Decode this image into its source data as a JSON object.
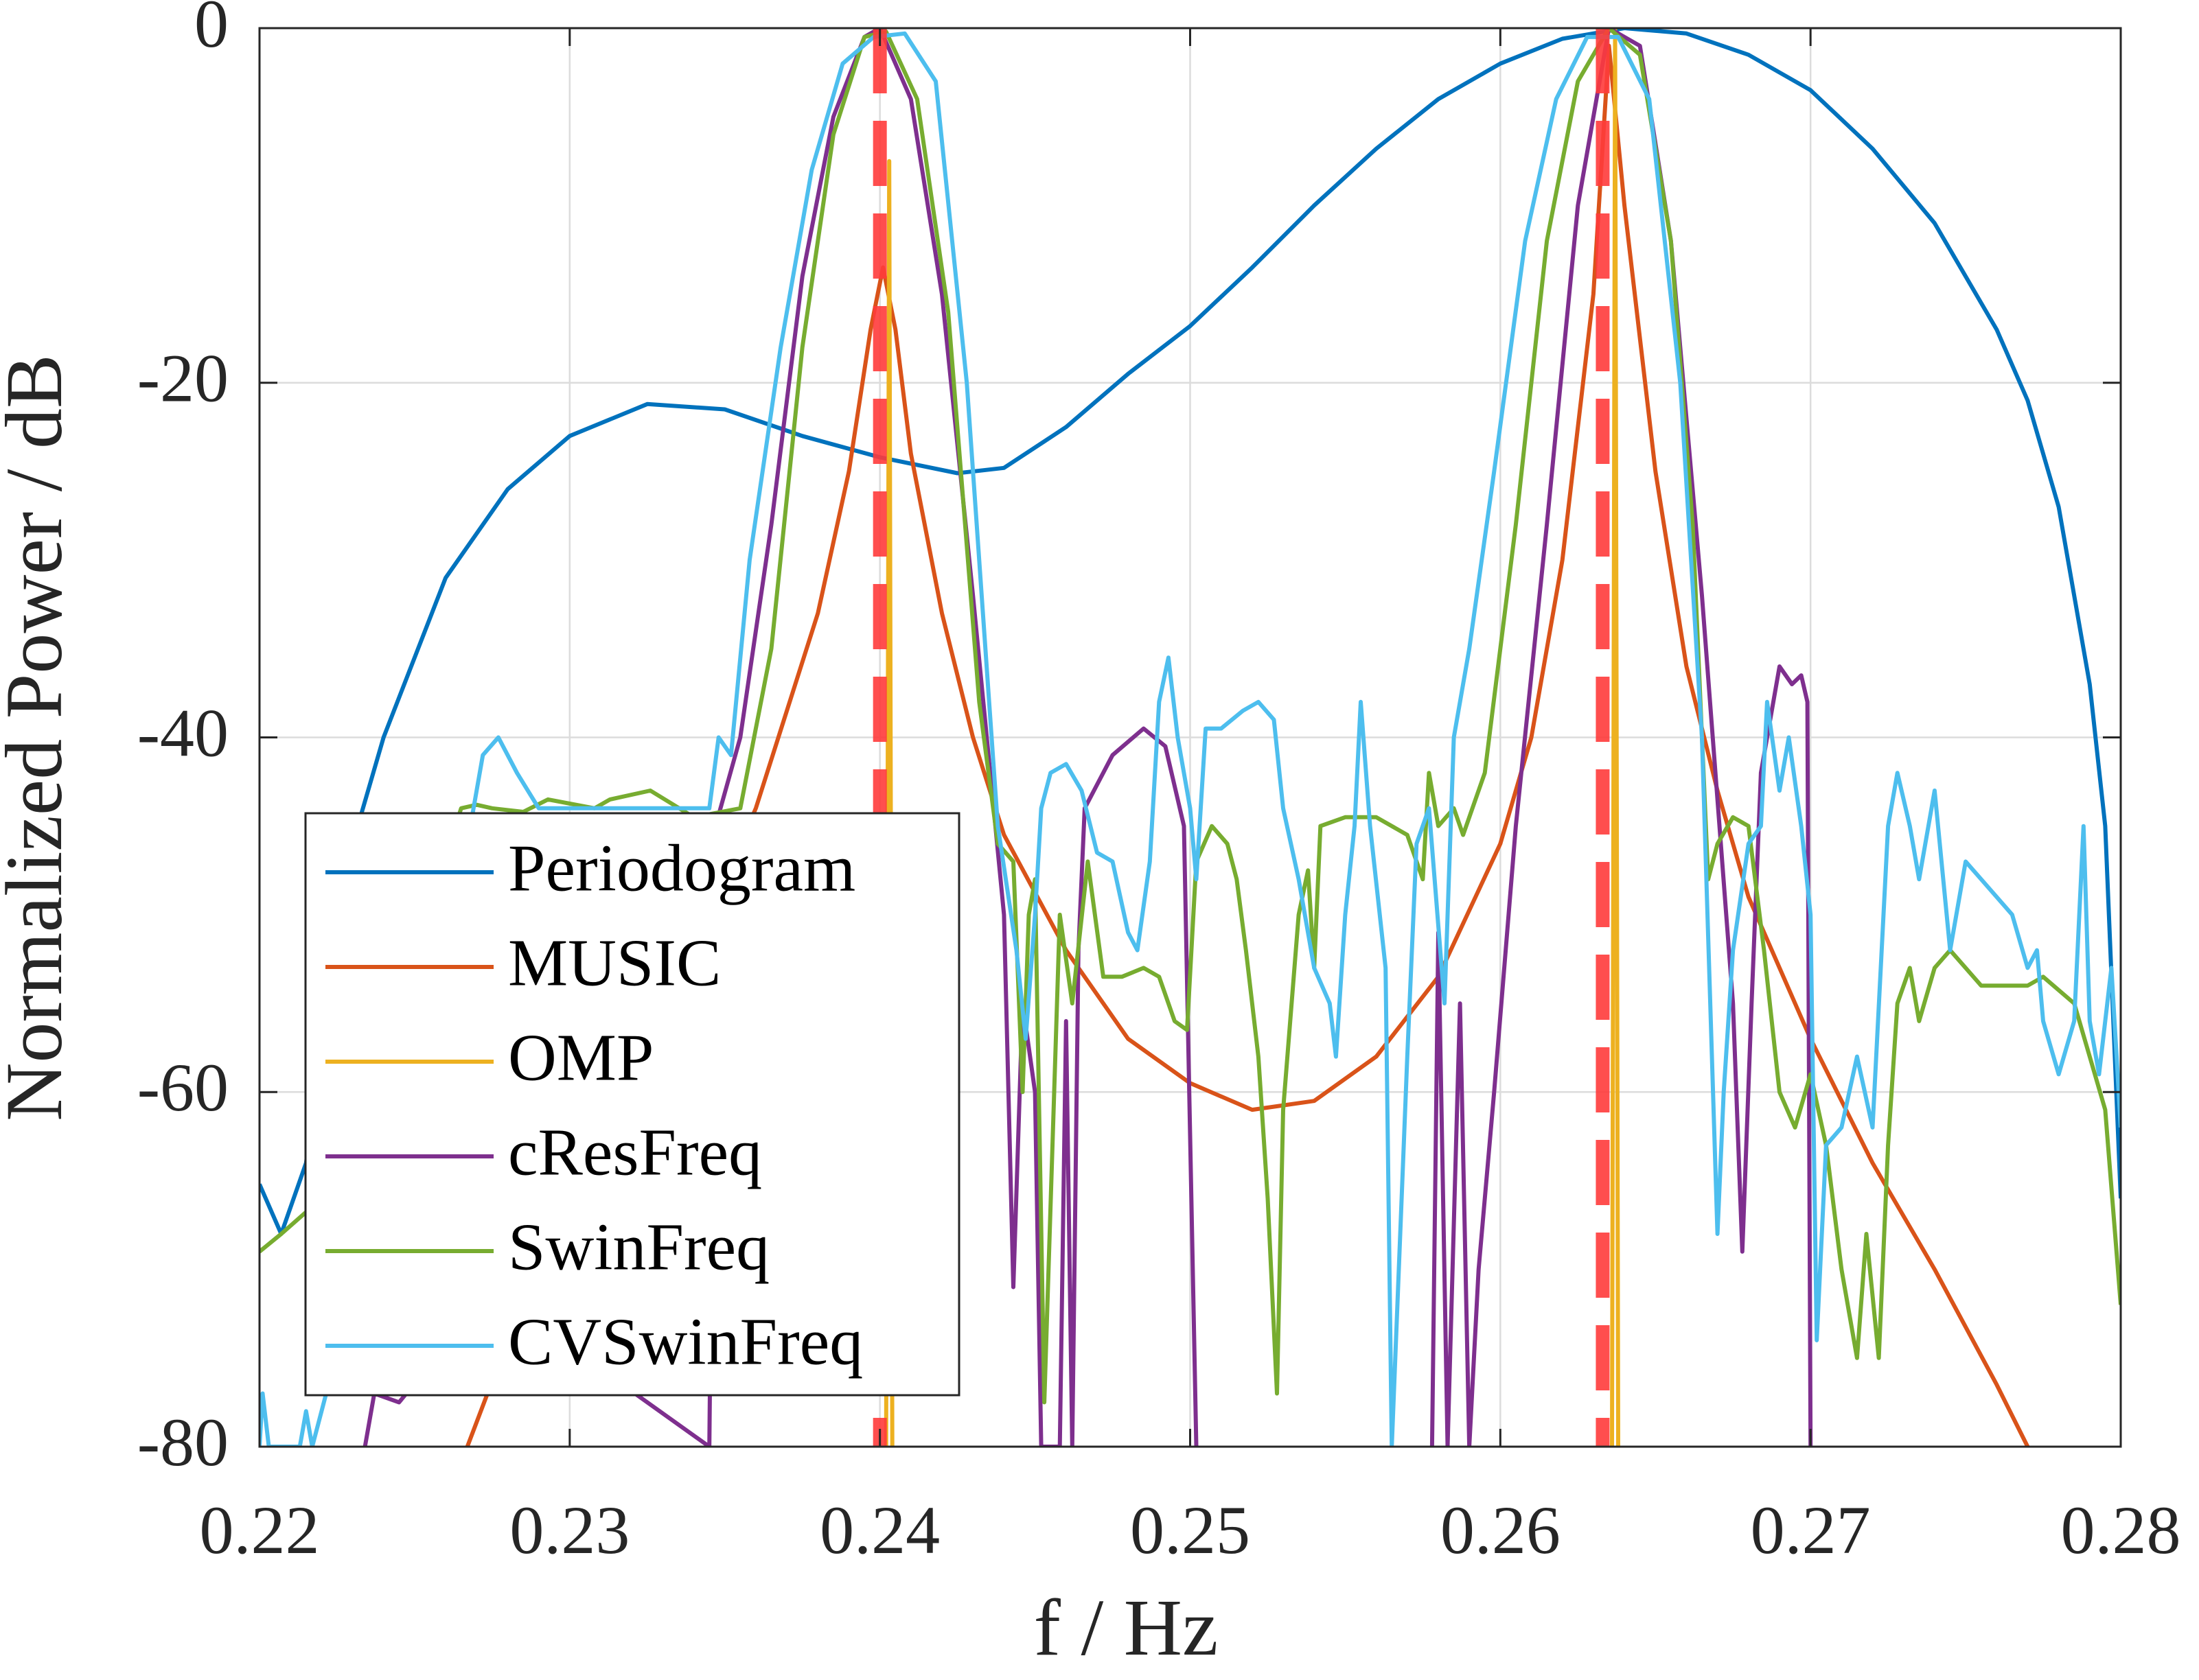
{
  "chart_data": {
    "type": "line",
    "xlabel": "f / Hz",
    "ylabel": "Normalized Power / dB",
    "xlim": [
      0.22,
      0.28
    ],
    "xticks": [
      0.22,
      0.23,
      0.24,
      0.25,
      0.26,
      0.27,
      0.28
    ],
    "ylim": [
      -80,
      0
    ],
    "yticks": [
      -80,
      -60,
      -40,
      -20,
      0
    ],
    "grid": true,
    "legend": "lower left",
    "true_frequencies": [
      0.24,
      0.2633
    ],
    "true_frequency_color": "#ff3b3b",
    "series": [
      {
        "name": "Periodogram",
        "color": "#0072BD",
        "x": [
          0.22,
          0.2207,
          0.2215,
          0.222,
          0.223,
          0.224,
          0.226,
          0.228,
          0.23,
          0.2325,
          0.235,
          0.2375,
          0.24,
          0.2425,
          0.244,
          0.246,
          0.248,
          0.25,
          0.252,
          0.254,
          0.256,
          0.258,
          0.26,
          0.262,
          0.264,
          0.266,
          0.268,
          0.27,
          0.272,
          0.274,
          0.276,
          0.277,
          0.278,
          0.279,
          0.2795,
          0.28
        ],
        "values": [
          -65.2,
          -68,
          -64,
          -57,
          -46,
          -40,
          -31,
          -26,
          -23,
          -21.2,
          -21.5,
          -23,
          -24.2,
          -25.1,
          -24.8,
          -22.5,
          -19.5,
          -16.8,
          -13.5,
          -10,
          -6.8,
          -4,
          -2,
          -0.6,
          0,
          -0.3,
          -1.5,
          -3.5,
          -6.8,
          -11,
          -17,
          -21,
          -27,
          -37,
          -45,
          -66
        ]
      },
      {
        "name": "MUSIC",
        "color": "#D95319",
        "x": [
          0.2267,
          0.228,
          0.23,
          0.232,
          0.234,
          0.236,
          0.238,
          0.239,
          0.2397,
          0.2401,
          0.2405,
          0.241,
          0.242,
          0.243,
          0.244,
          0.246,
          0.248,
          0.25,
          0.252,
          0.254,
          0.256,
          0.258,
          0.26,
          0.261,
          0.262,
          0.263,
          0.2635,
          0.264,
          0.265,
          0.266,
          0.267,
          0.268,
          0.27,
          0.272,
          0.274,
          0.276,
          0.277
        ],
        "values": [
          -80,
          -74,
          -66,
          -59,
          -52,
          -44,
          -33,
          -25,
          -17,
          -13.5,
          -17,
          -24,
          -33,
          -40,
          -45.5,
          -52,
          -57,
          -59.5,
          -61,
          -60.5,
          -58,
          -53.5,
          -46,
          -40,
          -30,
          -15,
          -1,
          -10,
          -25,
          -36,
          -43,
          -49,
          -57,
          -64,
          -70,
          -76.5,
          -80
        ]
      },
      {
        "name": "OMP",
        "color": "#EDB120",
        "x": [
          0.2402,
          0.2403,
          0.2404,
          0.252,
          0.2636,
          0.2637,
          0.2638
        ],
        "values": [
          -80,
          -7.5,
          -80,
          null,
          -80,
          0,
          -80
        ]
      },
      {
        "name": "cResFreq",
        "color": "#7E2F8E",
        "x": [
          0.2234,
          0.2237,
          0.2245,
          0.2252,
          0.2305,
          0.2345,
          0.2347,
          0.2355,
          0.2365,
          0.2375,
          0.2385,
          0.2395,
          0.24,
          0.241,
          0.242,
          0.243,
          0.244,
          0.2443,
          0.2446,
          0.245,
          0.2452,
          0.2458,
          0.246,
          0.2462,
          0.2464,
          0.2466,
          0.2475,
          0.2485,
          0.2492,
          0.2498,
          0.2502,
          0.254,
          0.2578,
          0.258,
          0.2583,
          0.2587,
          0.259,
          0.2593,
          0.2598,
          0.2605,
          0.2615,
          0.2625,
          0.2635,
          0.2645,
          0.2655,
          0.2665,
          0.2675,
          0.2678,
          0.2681,
          0.2684,
          0.269,
          0.2694,
          0.2697,
          0.2699,
          0.27
        ],
        "values": [
          -80,
          -77,
          -77.5,
          -76,
          -75,
          -80,
          -45,
          -40,
          -28,
          -14,
          -5,
          -0.5,
          0,
          -4,
          -15,
          -32,
          -50,
          -71,
          -55,
          -60,
          -80,
          -80,
          -56,
          -80,
          -52,
          -44,
          -41,
          -39.5,
          -40.5,
          -45,
          -80,
          null,
          -80,
          -51,
          -80,
          -55,
          -80,
          -70,
          -60,
          -45,
          -28,
          -10,
          0,
          -1,
          -12,
          -32,
          -55,
          -69,
          -55,
          -42,
          -36,
          -37,
          -36.5,
          -38,
          -80
        ]
      },
      {
        "name": "SwinFreq",
        "color": "#77AC30",
        "x": [
          0.22,
          0.2207,
          0.222,
          0.2225,
          0.2265,
          0.227,
          0.2275,
          0.2285,
          0.2293,
          0.2308,
          0.2313,
          0.2326,
          0.234,
          0.2355,
          0.2365,
          0.2375,
          0.2385,
          0.2395,
          0.2402,
          0.2412,
          0.2422,
          0.2432,
          0.2438,
          0.2443,
          0.2446,
          0.2448,
          0.245,
          0.2453,
          0.2458,
          0.2462,
          0.2467,
          0.2472,
          0.2478,
          0.2485,
          0.249,
          0.2495,
          0.2499,
          0.2502,
          0.2507,
          0.2512,
          0.2515,
          0.2518,
          0.2522,
          0.2525,
          0.2528,
          0.253,
          0.2535,
          0.2538,
          0.254,
          0.2542,
          0.255,
          0.256,
          0.257,
          0.2575,
          0.2577,
          0.258,
          0.2585,
          0.2588,
          0.2595,
          0.2605,
          0.2615,
          0.2625,
          0.2635,
          0.2645,
          0.2655,
          0.2662,
          0.2667,
          0.267,
          0.2675,
          0.268,
          0.2685,
          0.269,
          0.2695,
          0.27,
          0.2705,
          0.271,
          0.2715,
          0.2718,
          0.2722,
          0.2725,
          0.2728,
          0.2732,
          0.2735,
          0.274,
          0.2745,
          0.2755,
          0.2765,
          0.277,
          0.2775,
          0.2785,
          0.2795,
          0.28
        ],
        "values": [
          -69,
          -68,
          -66,
          -65.8,
          -44,
          -43.8,
          -44,
          -44.2,
          -43.5,
          -44,
          -43.5,
          -43,
          -44.5,
          -44,
          -35,
          -18,
          -6,
          -0.5,
          -0.2,
          -4,
          -16,
          -38,
          -46,
          -47,
          -60,
          -50,
          -48,
          -77.5,
          -50,
          -55,
          -47,
          -53.5,
          -53.5,
          -53,
          -53.5,
          -56,
          -56.5,
          -47,
          -45,
          -46,
          -48,
          -52,
          -58,
          -66,
          -77,
          -61,
          -50,
          -47.5,
          -53,
          -45,
          -44.5,
          -44.5,
          -45.5,
          -48,
          -42,
          -45,
          -44,
          -45.5,
          -42,
          -28,
          -12,
          -3,
          0,
          -1.5,
          -12,
          -28,
          -48,
          -46,
          -44.5,
          -45,
          -52,
          -60,
          -62,
          -59,
          -63,
          -70,
          -75,
          -68,
          -75,
          -63,
          -55,
          -53,
          -56,
          -53,
          -52,
          -54,
          -54,
          -54,
          -53.5,
          -55,
          -61,
          -72
        ]
      },
      {
        "name": "CVSwinFreq",
        "color": "#4DBEEE",
        "x": [
          0.22,
          0.2201,
          0.2203,
          0.2213,
          0.2215,
          0.2217,
          0.2265,
          0.2268,
          0.2272,
          0.2277,
          0.2283,
          0.229,
          0.2345,
          0.2348,
          0.2352,
          0.2358,
          0.2368,
          0.2378,
          0.2388,
          0.2398,
          0.2408,
          0.2418,
          0.2428,
          0.2438,
          0.2444,
          0.2447,
          0.245,
          0.2452,
          0.2455,
          0.246,
          0.2465,
          0.247,
          0.2475,
          0.248,
          0.2483,
          0.2487,
          0.249,
          0.2493,
          0.2496,
          0.25,
          0.2502,
          0.2505,
          0.251,
          0.2517,
          0.2522,
          0.2527,
          0.253,
          0.2535,
          0.254,
          0.2545,
          0.2547,
          0.255,
          0.2553,
          0.2555,
          0.2558,
          0.2563,
          0.2565,
          0.257,
          0.2573,
          0.2577,
          0.2582,
          0.2585,
          0.259,
          0.2598,
          0.2608,
          0.2618,
          0.2628,
          0.2638,
          0.2648,
          0.2658,
          0.2665,
          0.267,
          0.2672,
          0.2675,
          0.268,
          0.2684,
          0.2686,
          0.269,
          0.2693,
          0.2697,
          0.27,
          0.2702,
          0.2705,
          0.271,
          0.2715,
          0.272,
          0.2725,
          0.2728,
          0.2732,
          0.2735,
          0.274,
          0.2745,
          0.275,
          0.2755,
          0.2765,
          0.277,
          0.2773,
          0.2775,
          0.278,
          0.2785,
          0.2788,
          0.279,
          0.2793,
          0.2797,
          0.28
        ],
        "values": [
          -80,
          -77,
          -80,
          -80,
          -78,
          -80,
          -48,
          -45,
          -41,
          -40,
          -42,
          -44,
          -44,
          -40,
          -41,
          -30,
          -18,
          -8,
          -2,
          -0.5,
          -0.3,
          -3,
          -20,
          -45,
          -52,
          -57,
          -50,
          -44,
          -42,
          -41.5,
          -43,
          -46.5,
          -47,
          -51,
          -52,
          -47,
          -38,
          -35.5,
          -40,
          -44,
          -48,
          -39.5,
          -39.5,
          -38.5,
          -38,
          -39,
          -44,
          -48,
          -53,
          -55,
          -58,
          -50,
          -45,
          -38,
          -45,
          -53,
          -80,
          -58,
          -46,
          -44,
          -55,
          -40,
          -35,
          -25,
          -12,
          -4,
          -0.5,
          -0.5,
          -4,
          -20,
          -40,
          -68,
          -60,
          -52,
          -46,
          -45,
          -38,
          -43,
          -40,
          -45,
          -50,
          -74,
          -63,
          -62,
          -58,
          -62,
          -45,
          -42,
          -45,
          -48,
          -43,
          -52,
          -47,
          -48,
          -50,
          -53,
          -52,
          -56,
          -59,
          -56,
          -45,
          -56,
          -59,
          -53,
          -62
        ]
      }
    ]
  }
}
